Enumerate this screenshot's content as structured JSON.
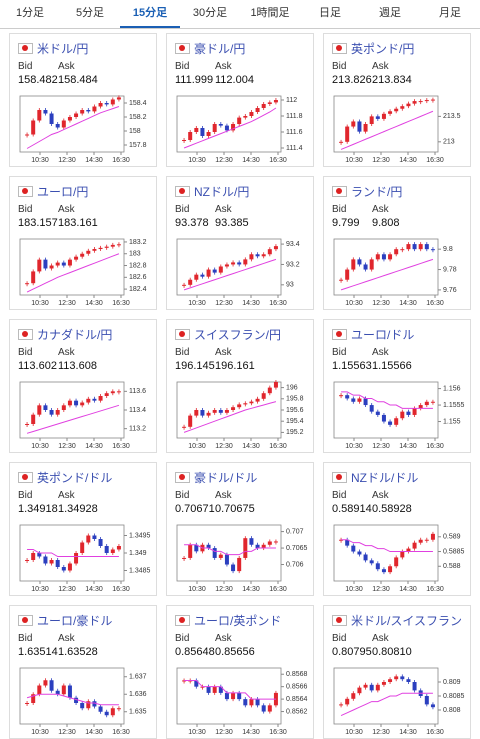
{
  "tabs": [
    "1分足",
    "5分足",
    "15分足",
    "30分足",
    "1時間足",
    "日足",
    "週足",
    "月足"
  ],
  "labels": {
    "bid": "Bid",
    "ask": "Ask"
  },
  "xticks": [
    "10:30",
    "12:30",
    "14:30",
    "16:30"
  ],
  "cards": [
    {
      "pair": "米ドル/円",
      "bid": "158.482",
      "ask": "158.484",
      "ylim": [
        157.7,
        158.5
      ],
      "yticks": [
        158.4,
        158.2,
        158,
        157.8
      ],
      "closes": [
        157.95,
        158.15,
        158.3,
        158.25,
        158.1,
        158.05,
        158.15,
        158.2,
        158.25,
        158.3,
        158.28,
        158.35,
        158.4,
        158.38,
        158.45,
        158.48
      ],
      "ma": [
        157.75,
        157.8,
        157.85,
        157.9,
        157.95,
        157.98,
        158.02,
        158.06,
        158.1,
        158.14,
        158.18,
        158.22,
        158.26,
        158.29,
        158.32,
        158.35
      ]
    },
    {
      "pair": "豪ドル/円",
      "bid": "111.999",
      "ask": "112.004",
      "ylim": [
        111.35,
        112.05
      ],
      "yticks": [
        112,
        111.8,
        111.6,
        111.4
      ],
      "closes": [
        111.5,
        111.6,
        111.65,
        111.55,
        111.6,
        111.7,
        111.68,
        111.62,
        111.7,
        111.78,
        111.8,
        111.85,
        111.9,
        111.95,
        111.97,
        112.0
      ],
      "ma": [
        111.4,
        111.43,
        111.46,
        111.49,
        111.52,
        111.55,
        111.58,
        111.61,
        111.64,
        111.67,
        111.7,
        111.73,
        111.77,
        111.81,
        111.85,
        111.9
      ]
    },
    {
      "pair": "英ポンド/円",
      "bid": "213.826",
      "ask": "213.834",
      "ylim": [
        212.8,
        213.9
      ],
      "yticks": [
        213.5,
        213
      ],
      "closes": [
        213.0,
        213.3,
        213.4,
        213.2,
        213.35,
        213.5,
        213.45,
        213.55,
        213.6,
        213.65,
        213.7,
        213.75,
        213.8,
        213.8,
        213.82,
        213.83
      ],
      "ma": [
        212.85,
        212.9,
        212.95,
        213.0,
        213.05,
        213.1,
        213.15,
        213.2,
        213.25,
        213.3,
        213.35,
        213.4,
        213.45,
        213.5,
        213.55,
        213.6
      ]
    },
    {
      "pair": "ユーロ/円",
      "bid": "183.157",
      "ask": "183.161",
      "ylim": [
        182.3,
        183.25
      ],
      "yticks": [
        183.2,
        183,
        182.8,
        182.6,
        182.4
      ],
      "closes": [
        182.5,
        182.7,
        182.9,
        182.75,
        182.8,
        182.85,
        182.8,
        182.9,
        182.95,
        183.0,
        183.05,
        183.08,
        183.1,
        183.12,
        183.15,
        183.16
      ],
      "ma": [
        182.35,
        182.4,
        182.45,
        182.5,
        182.55,
        182.6,
        182.64,
        182.68,
        182.72,
        182.76,
        182.8,
        182.84,
        182.88,
        182.92,
        182.96,
        183.0
      ]
    },
    {
      "pair": "NZドル/円",
      "bid": "93.378",
      "ask": "93.385",
      "ylim": [
        92.9,
        93.45
      ],
      "yticks": [
        93.4,
        93.2,
        93
      ],
      "closes": [
        93.0,
        93.05,
        93.1,
        93.08,
        93.15,
        93.12,
        93.18,
        93.2,
        93.22,
        93.2,
        93.25,
        93.3,
        93.28,
        93.3,
        93.35,
        93.38
      ],
      "ma": [
        92.95,
        92.97,
        92.99,
        93.01,
        93.03,
        93.05,
        93.07,
        93.09,
        93.11,
        93.13,
        93.15,
        93.17,
        93.19,
        93.21,
        93.23,
        93.25
      ]
    },
    {
      "pair": "ランド/円",
      "bid": "9.799",
      "ask": "9.808",
      "ylim": [
        9.755,
        9.81
      ],
      "yticks": [
        9.8,
        9.78,
        9.76
      ],
      "closes": [
        9.77,
        9.78,
        9.79,
        9.785,
        9.78,
        9.79,
        9.795,
        9.79,
        9.795,
        9.8,
        9.8,
        9.805,
        9.8,
        9.805,
        9.8,
        9.799
      ],
      "ma": [
        9.76,
        9.762,
        9.764,
        9.766,
        9.768,
        9.77,
        9.772,
        9.774,
        9.776,
        9.778,
        9.78,
        9.782,
        9.784,
        9.786,
        9.788,
        9.79
      ]
    },
    {
      "pair": "カナダドル/円",
      "bid": "113.602",
      "ask": "113.608",
      "ylim": [
        113.1,
        113.7
      ],
      "yticks": [
        113.6,
        113.4,
        113.2
      ],
      "closes": [
        113.25,
        113.35,
        113.45,
        113.4,
        113.35,
        113.4,
        113.45,
        113.5,
        113.45,
        113.48,
        113.52,
        113.5,
        113.55,
        113.58,
        113.6,
        113.6
      ],
      "ma": [
        113.15,
        113.17,
        113.19,
        113.21,
        113.23,
        113.25,
        113.27,
        113.29,
        113.31,
        113.33,
        113.35,
        113.37,
        113.39,
        113.41,
        113.43,
        113.45
      ]
    },
    {
      "pair": "スイスフラン/円",
      "bid": "196.145",
      "ask": "196.161",
      "ylim": [
        195.1,
        196.1
      ],
      "yticks": [
        196,
        195.8,
        195.6,
        195.4,
        195.2
      ],
      "closes": [
        195.3,
        195.5,
        195.6,
        195.5,
        195.55,
        195.6,
        195.55,
        195.6,
        195.65,
        195.7,
        195.72,
        195.75,
        195.8,
        195.9,
        196.0,
        196.1
      ],
      "ma": [
        195.2,
        195.24,
        195.28,
        195.32,
        195.36,
        195.4,
        195.44,
        195.48,
        195.52,
        195.56,
        195.6,
        195.63,
        195.66,
        195.69,
        195.72,
        195.75
      ]
    },
    {
      "pair": "ユーロ/ドル",
      "bid": "1.15563",
      "ask": "1.15566",
      "ylim": [
        1.1545,
        1.1562
      ],
      "yticks": [
        1.156,
        1.1555,
        1.155
      ],
      "closes": [
        1.1558,
        1.1557,
        1.1556,
        1.1557,
        1.1555,
        1.1553,
        1.1552,
        1.155,
        1.1549,
        1.1551,
        1.1553,
        1.1552,
        1.1554,
        1.1555,
        1.1556,
        1.1556
      ],
      "ma": [
        1.1559,
        1.1559,
        1.1558,
        1.1558,
        1.1557,
        1.1557,
        1.1556,
        1.1556,
        1.1555,
        1.1555,
        1.1554,
        1.1554,
        1.1554,
        1.1554,
        1.1554,
        1.1554
      ]
    },
    {
      "pair": "英ポンド/ドル",
      "bid": "1.34918",
      "ask": "1.34928",
      "ylim": [
        1.3482,
        1.3498
      ],
      "yticks": [
        1.3495,
        1.349,
        1.3485
      ],
      "closes": [
        1.3488,
        1.349,
        1.3489,
        1.3487,
        1.3488,
        1.3486,
        1.3485,
        1.3487,
        1.349,
        1.3493,
        1.3495,
        1.3494,
        1.3492,
        1.349,
        1.3491,
        1.3492
      ],
      "ma": [
        1.3491,
        1.3491,
        1.349,
        1.349,
        1.349,
        1.3489,
        1.3489,
        1.3489,
        1.3489,
        1.3489,
        1.3489,
        1.3489,
        1.3489,
        1.3489,
        1.3489,
        1.3489
      ]
    },
    {
      "pair": "豪ドル/ドル",
      "bid": "0.70671",
      "ask": "0.70675",
      "ylim": [
        0.7055,
        0.7072
      ],
      "yticks": [
        0.707,
        0.7065,
        0.706
      ],
      "closes": [
        0.7062,
        0.7066,
        0.7064,
        0.7066,
        0.7065,
        0.7062,
        0.7063,
        0.706,
        0.7058,
        0.7062,
        0.7068,
        0.7066,
        0.7065,
        0.7066,
        0.7067,
        0.7067
      ],
      "ma": [
        0.7066,
        0.7066,
        0.7066,
        0.7065,
        0.7065,
        0.7064,
        0.7064,
        0.7063,
        0.7063,
        0.7063,
        0.7064,
        0.7064,
        0.7065,
        0.7065,
        0.7065,
        0.7065
      ]
    },
    {
      "pair": "NZドル/ドル",
      "bid": "0.58914",
      "ask": "0.58928",
      "ylim": [
        0.5875,
        0.5894
      ],
      "yticks": [
        0.589,
        0.5885,
        0.588
      ],
      "closes": [
        0.5889,
        0.5887,
        0.5885,
        0.5884,
        0.5882,
        0.5881,
        0.5879,
        0.5878,
        0.588,
        0.5883,
        0.5885,
        0.5886,
        0.5888,
        0.5889,
        0.5889,
        0.5891
      ],
      "ma": [
        0.5889,
        0.5889,
        0.5888,
        0.5888,
        0.5887,
        0.5887,
        0.5886,
        0.5886,
        0.5885,
        0.5885,
        0.5885,
        0.5885,
        0.5885,
        0.5885,
        0.5885,
        0.5885
      ]
    },
    {
      "pair": "ユーロ/豪ドル",
      "bid": "1.63514",
      "ask": "1.63528",
      "ylim": [
        1.6343,
        1.6375
      ],
      "yticks": [
        1.637,
        1.636,
        1.635
      ],
      "closes": [
        1.6355,
        1.636,
        1.6365,
        1.6368,
        1.6362,
        1.636,
        1.6365,
        1.6358,
        1.6355,
        1.6352,
        1.6356,
        1.6353,
        1.635,
        1.6348,
        1.6352,
        1.6352
      ],
      "ma": [
        1.6358,
        1.6359,
        1.636,
        1.636,
        1.636,
        1.636,
        1.6359,
        1.6358,
        1.6357,
        1.6356,
        1.6355,
        1.6355,
        1.6354,
        1.6354,
        1.6354,
        1.6354
      ]
    },
    {
      "pair": "ユーロ/英ポンド",
      "bid": "0.85648",
      "ask": "0.85656",
      "ylim": [
        0.856,
        0.8569
      ],
      "yticks": [
        0.8568,
        0.8566,
        0.8564,
        0.8562
      ],
      "closes": [
        0.8567,
        0.8567,
        0.8566,
        0.8566,
        0.8565,
        0.8566,
        0.8565,
        0.8564,
        0.8565,
        0.8564,
        0.8563,
        0.8564,
        0.8563,
        0.8562,
        0.8563,
        0.8565
      ],
      "ma": [
        0.8567,
        0.8567,
        0.8567,
        0.8566,
        0.8566,
        0.8566,
        0.8566,
        0.8565,
        0.8565,
        0.8565,
        0.8565,
        0.8564,
        0.8564,
        0.8564,
        0.8564,
        0.8564
      ]
    },
    {
      "pair": "米ドル/スイスフラン",
      "bid": "0.80795",
      "ask": "0.80810",
      "ylim": [
        0.8075,
        0.8095
      ],
      "yticks": [
        0.809,
        0.8085,
        0.808
      ],
      "closes": [
        0.8082,
        0.8084,
        0.8086,
        0.8088,
        0.8089,
        0.8087,
        0.8089,
        0.809,
        0.8091,
        0.8092,
        0.8091,
        0.809,
        0.8087,
        0.8085,
        0.8082,
        0.8081
      ],
      "ma": [
        0.8078,
        0.8079,
        0.808,
        0.8081,
        0.8082,
        0.8083,
        0.8083,
        0.8084,
        0.8085,
        0.8085,
        0.8086,
        0.8086,
        0.8086,
        0.8086,
        0.8086,
        0.8086
      ]
    }
  ]
}
